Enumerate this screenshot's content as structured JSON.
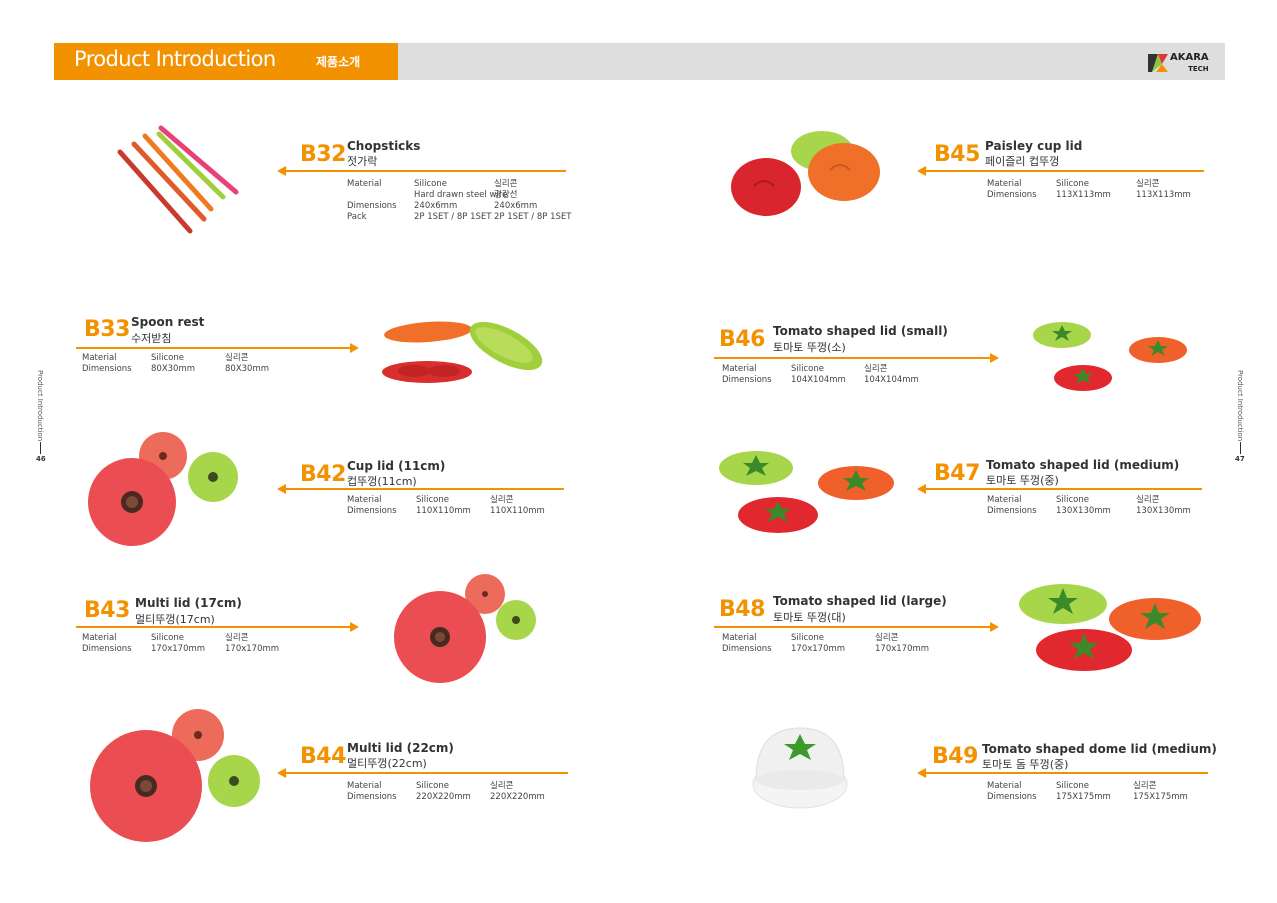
{
  "header": {
    "title": "Product Introduction",
    "subtitle": "제품소개",
    "logo_top": "AKARA",
    "logo_bottom": "TECH"
  },
  "side": {
    "left_label": "Product Introduction",
    "left_page": "46",
    "right_label": "Product Introduction",
    "right_page": "47"
  },
  "labels": {
    "material": "Material",
    "dimensions": "Dimensions",
    "pack": "Pack"
  },
  "products": {
    "b32": {
      "code": "B32",
      "name_en": "Chopsticks",
      "name_ko": "젓가락",
      "material": "Silicone",
      "material_note": "Hard drawn steel wire",
      "material_ko": "실리콘",
      "material_ko_note": "경강선",
      "dim": "240x6mm",
      "dim_ko": "240x6mm",
      "pack": "2P 1SET / 8P 1SET",
      "pack_ko": "2P 1SET / 8P 1SET"
    },
    "b33": {
      "code": "B33",
      "name_en": "Spoon rest",
      "name_ko": "수저받침",
      "material": "Silicone",
      "material_ko": "실리콘",
      "dim": "80X30mm",
      "dim_ko": "80X30mm"
    },
    "b42": {
      "code": "B42",
      "name_en": "Cup lid (11cm)",
      "name_ko": "컵뚜껑(11cm)",
      "material": "Silicone",
      "material_ko": "실리콘",
      "dim": "110X110mm",
      "dim_ko": "110X110mm"
    },
    "b43": {
      "code": "B43",
      "name_en": "Multi lid (17cm)",
      "name_ko": "멀티뚜껑(17cm)",
      "material": "Silicone",
      "material_ko": "실리콘",
      "dim": "170x170mm",
      "dim_ko": "170x170mm"
    },
    "b44": {
      "code": "B44",
      "name_en": "Multi lid (22cm)",
      "name_ko": "멀티뚜껑(22cm)",
      "material": "Silicone",
      "material_ko": "실리콘",
      "dim": "220X220mm",
      "dim_ko": "220X220mm"
    },
    "b45": {
      "code": "B45",
      "name_en": "Paisley cup lid",
      "name_ko": "페이즐리 컵뚜껑",
      "material": "Silicone",
      "material_ko": "실리콘",
      "dim": "113X113mm",
      "dim_ko": "113X113mm"
    },
    "b46": {
      "code": "B46",
      "name_en": "Tomato shaped lid (small)",
      "name_ko": "토마토 뚜껑(소)",
      "material": "Silicone",
      "material_ko": "실리콘",
      "dim": "104X104mm",
      "dim_ko": "104X104mm"
    },
    "b47": {
      "code": "B47",
      "name_en": "Tomato shaped lid (medium)",
      "name_ko": "토마토 뚜껑(중)",
      "material": "Silicone",
      "material_ko": "실리콘",
      "dim": "130X130mm",
      "dim_ko": "130X130mm"
    },
    "b48": {
      "code": "B48",
      "name_en": "Tomato shaped lid (large)",
      "name_ko": "토마토 뚜껑(대)",
      "material": "Silicone",
      "material_ko": "실리콘",
      "dim": "170x170mm",
      "dim_ko": "170x170mm"
    },
    "b49": {
      "code": "B49",
      "name_en": "Tomato shaped dome lid (medium)",
      "name_ko": "토마토 돔 뚜껑(중)",
      "material": "Silicone",
      "material_ko": "실리콘",
      "dim": "175X175mm",
      "dim_ko": "175X175mm"
    }
  },
  "colors": {
    "accent": "#f39200",
    "header_gray": "#dedede",
    "lid_red": "#e0353a",
    "lid_coral": "#e8584d",
    "lid_green": "#9fcf3a",
    "lid_orange": "#f0702a"
  }
}
